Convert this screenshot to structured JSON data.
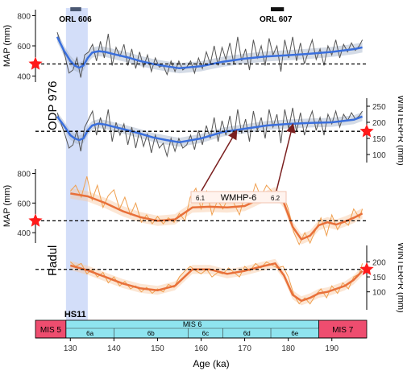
{
  "chart_data": {
    "type": "line",
    "x_axis": {
      "label": "Age (ka)",
      "range": [
        122,
        198
      ],
      "ticks": [
        130,
        140,
        150,
        160,
        170,
        180,
        190
      ]
    },
    "bands": [
      {
        "name": "HS11",
        "x_range": [
          129,
          134
        ],
        "color": "#c8d6f8"
      }
    ],
    "annotations": {
      "orl_606": {
        "label": "ORL 606",
        "x_range": [
          130,
          132.5
        ]
      },
      "orl_607": {
        "label": "ORL 607",
        "x_range": [
          176,
          179
        ]
      },
      "wmhp": {
        "label": "WMHP-6",
        "left": "6.1",
        "right": "6.2",
        "arrow_targets": [
          168,
          181
        ]
      }
    },
    "panels": [
      {
        "id": "odp_map",
        "site_label": "ODP 976",
        "ylabel": "MAP (mm)",
        "y_side": "left",
        "ylim": [
          360,
          840
        ],
        "yticks": [
          400,
          600,
          800
        ],
        "reference_y": 480,
        "star_side": "left",
        "raw_color": "#555555",
        "smooth_color": "#3a6fdd",
        "band_color": "#9fb0c8",
        "smooth": {
          "x": [
            127,
            128.5,
            130,
            131,
            132,
            133,
            134,
            135,
            136.5,
            138,
            140,
            143,
            146,
            149,
            152,
            155,
            160,
            165,
            170,
            175,
            180,
            185,
            190,
            195,
            197
          ],
          "y": [
            660,
            570,
            500,
            470,
            455,
            470,
            520,
            555,
            565,
            560,
            545,
            525,
            500,
            480,
            465,
            452,
            465,
            495,
            515,
            530,
            538,
            548,
            560,
            578,
            590
          ]
        },
        "raw": {
          "x": [
            127.0,
            127.9,
            128.8,
            129.7,
            130.6,
            131.5,
            132.4,
            133.3,
            134.2,
            135.1,
            136.0,
            136.9,
            137.8,
            138.7,
            139.6,
            140.5,
            141.4,
            142.3,
            143.2,
            144.1,
            145.0,
            145.9,
            146.8,
            147.7,
            148.6,
            149.5,
            150.4,
            151.3,
            152.2,
            153.1,
            154.0,
            154.9,
            155.8,
            156.7,
            157.6,
            158.5,
            159.4,
            160.3,
            161.2,
            162.1,
            163.0,
            163.9,
            164.8,
            165.7,
            166.6,
            167.5,
            168.4,
            169.3,
            170.2,
            171.1,
            172.0,
            172.9,
            173.8,
            174.7,
            175.6,
            176.5,
            177.4,
            178.3,
            179.2,
            180.1,
            181.0,
            181.9,
            182.8,
            183.7,
            184.6,
            185.5,
            186.4,
            187.3,
            188.2,
            189.1,
            190.0,
            190.9,
            191.8,
            192.7,
            193.6,
            194.5,
            195.4,
            196.3,
            197.0
          ],
          "y": [
            690,
            610,
            530,
            420,
            440,
            520,
            390,
            540,
            560,
            610,
            500,
            630,
            520,
            680,
            470,
            590,
            530,
            610,
            470,
            580,
            450,
            560,
            460,
            540,
            430,
            520,
            460,
            470,
            410,
            500,
            430,
            500,
            440,
            460,
            500,
            420,
            520,
            450,
            560,
            480,
            600,
            470,
            590,
            510,
            620,
            480,
            660,
            500,
            580,
            440,
            640,
            520,
            600,
            470,
            650,
            540,
            600,
            430,
            640,
            520,
            660,
            500,
            620,
            480,
            560,
            640,
            510,
            580,
            470,
            600,
            540,
            640,
            520,
            610,
            560,
            620,
            570,
            600,
            640
          ]
        }
      },
      {
        "id": "odp_winterpr",
        "ylabel": "WINTERPR (mm)",
        "y_side": "right",
        "ylim": [
          75,
          275
        ],
        "yticks": [
          100,
          150,
          200,
          250
        ],
        "reference_y": 172,
        "star_side": "right",
        "raw_color": "#555555",
        "smooth_color": "#3a6fdd",
        "band_color": "#9fb0c8",
        "smooth": {
          "x": [
            127,
            128.5,
            130,
            131,
            132,
            133,
            134,
            135,
            136.5,
            138,
            140,
            143,
            146,
            149,
            152,
            155,
            160,
            165,
            170,
            175,
            180,
            185,
            190,
            195,
            197
          ],
          "y": [
            218,
            190,
            160,
            150,
            145,
            150,
            175,
            190,
            196,
            193,
            186,
            176,
            165,
            153,
            145,
            138,
            150,
            170,
            180,
            190,
            195,
            198,
            200,
            208,
            218
          ]
        },
        "raw": {
          "x": [
            127.0,
            127.9,
            128.8,
            129.7,
            130.6,
            131.5,
            132.4,
            133.3,
            134.2,
            135.1,
            136.0,
            136.9,
            137.8,
            138.7,
            139.6,
            140.5,
            141.4,
            142.3,
            143.2,
            144.1,
            145.0,
            145.9,
            146.8,
            147.7,
            148.6,
            149.5,
            150.4,
            151.3,
            152.2,
            153.1,
            154.0,
            154.9,
            155.8,
            156.7,
            157.6,
            158.5,
            159.4,
            160.3,
            161.2,
            162.1,
            163.0,
            163.9,
            164.8,
            165.7,
            166.6,
            167.5,
            168.4,
            169.3,
            170.2,
            171.1,
            172.0,
            172.9,
            173.8,
            174.7,
            175.6,
            176.5,
            177.4,
            178.3,
            179.2,
            180.1,
            181.0,
            181.9,
            182.8,
            183.7,
            184.6,
            185.5,
            186.4,
            187.3,
            188.2,
            189.1,
            190.0,
            190.9,
            191.8,
            192.7,
            193.6,
            194.5,
            195.4,
            196.3,
            197.0
          ],
          "y": [
            230,
            195,
            160,
            120,
            130,
            175,
            110,
            185,
            210,
            235,
            160,
            215,
            170,
            240,
            140,
            200,
            160,
            195,
            130,
            185,
            120,
            175,
            125,
            165,
            105,
            160,
            120,
            135,
            95,
            150,
            110,
            150,
            120,
            130,
            160,
            115,
            175,
            130,
            190,
            150,
            215,
            140,
            205,
            160,
            220,
            150,
            240,
            165,
            210,
            140,
            235,
            175,
            215,
            150,
            240,
            185,
            225,
            135,
            240,
            180,
            245,
            170,
            230,
            160,
            200,
            235,
            175,
            215,
            160,
            225,
            195,
            235,
            185,
            225,
            205,
            230,
            210,
            220,
            235
          ]
        }
      },
      {
        "id": "padul_map",
        "site_label": "Padul",
        "ylabel": "MAP (mm)",
        "y_side": "left",
        "ylim": [
          330,
          830
        ],
        "yticks": [
          400,
          600,
          800
        ],
        "reference_y": 480,
        "star_side": "left",
        "raw_color": "#f0a050",
        "smooth_color": "#e8703a",
        "band_color": "#f8c8a0",
        "smooth": {
          "x": [
            130,
            134,
            138,
            142,
            146,
            150,
            154,
            158,
            162,
            166,
            170,
            174,
            177,
            179,
            181,
            183,
            185,
            187,
            189,
            191,
            193,
            195,
            197
          ],
          "y": [
            665,
            645,
            600,
            545,
            505,
            480,
            490,
            570,
            575,
            570,
            580,
            635,
            675,
            600,
            440,
            355,
            380,
            450,
            470,
            455,
            475,
            500,
            530
          ]
        },
        "raw": {
          "x": [
            130.0,
            131.2,
            132.5,
            133.8,
            135.0,
            136.2,
            137.5,
            138.7,
            140.0,
            141.3,
            142.5,
            143.8,
            145.0,
            146.3,
            147.5,
            148.8,
            150.0,
            151.3,
            152.5,
            153.8,
            155.0,
            156.3,
            157.5,
            158.8,
            160.0,
            161.3,
            162.5,
            163.8,
            165.0,
            166.3,
            167.5,
            168.8,
            170.0,
            171.2,
            172.5,
            173.7,
            175.0,
            176.2,
            177.5,
            178.8,
            180.0,
            181.3,
            182.5,
            183.8,
            185.0,
            186.3,
            187.5,
            188.8,
            190.0,
            191.3,
            192.5,
            193.8,
            195.0,
            196.3,
            197.0
          ],
          "y": [
            680,
            720,
            640,
            780,
            620,
            720,
            570,
            650,
            690,
            560,
            640,
            520,
            600,
            470,
            520,
            460,
            510,
            460,
            500,
            470,
            530,
            480,
            640,
            700,
            560,
            680,
            520,
            620,
            560,
            640,
            600,
            520,
            650,
            600,
            730,
            640,
            720,
            680,
            640,
            660,
            560,
            400,
            320,
            400,
            330,
            420,
            500,
            380,
            520,
            420,
            480,
            450,
            560,
            500,
            560
          ]
        }
      },
      {
        "id": "padul_winterpr",
        "ylabel": "WINTERPR (mm)",
        "y_side": "right",
        "ylim": [
          40,
          255
        ],
        "yticks": [
          100,
          150,
          200
        ],
        "reference_y": 175,
        "star_side": "right",
        "raw_color": "#f0a050",
        "smooth_color": "#e8703a",
        "band_color": "#f8c8a0",
        "smooth": {
          "x": [
            130,
            134,
            138,
            142,
            146,
            150,
            154,
            158,
            162,
            166,
            170,
            174,
            177,
            179,
            181,
            183,
            185,
            187,
            189,
            191,
            193,
            195,
            197
          ],
          "y": [
            188,
            172,
            150,
            128,
            112,
            105,
            120,
            175,
            175,
            160,
            170,
            185,
            195,
            155,
            90,
            70,
            80,
            95,
            100,
            110,
            120,
            140,
            170
          ]
        },
        "raw": {
          "x": [
            130.0,
            131.2,
            132.5,
            133.8,
            135.0,
            136.2,
            137.5,
            138.7,
            140.0,
            141.3,
            142.5,
            143.8,
            145.0,
            146.3,
            147.5,
            148.8,
            150.0,
            151.3,
            152.5,
            153.8,
            155.0,
            156.3,
            157.5,
            158.8,
            160.0,
            161.3,
            162.5,
            163.8,
            165.0,
            166.3,
            167.5,
            168.8,
            170.0,
            171.2,
            172.5,
            173.7,
            175.0,
            176.2,
            177.5,
            178.8,
            180.0,
            181.3,
            182.5,
            183.8,
            185.0,
            186.3,
            187.5,
            188.8,
            190.0,
            191.3,
            192.5,
            193.8,
            195.0,
            196.3,
            197.0
          ],
          "y": [
            200,
            185,
            195,
            160,
            175,
            150,
            165,
            130,
            150,
            120,
            135,
            110,
            120,
            100,
            115,
            95,
            110,
            100,
            125,
            115,
            150,
            170,
            185,
            170,
            160,
            175,
            150,
            165,
            160,
            180,
            165,
            150,
            185,
            170,
            195,
            180,
            200,
            190,
            180,
            185,
            150,
            90,
            60,
            80,
            60,
            90,
            110,
            80,
            120,
            95,
            130,
            110,
            150,
            160,
            195
          ]
        }
      }
    ],
    "timescale": {
      "stages": [
        {
          "label": "MIS 5",
          "x_range": [
            122,
            129
          ],
          "color": "#ee4d6f"
        },
        {
          "label": "MIS 6",
          "x_range": [
            129,
            187
          ],
          "color": "#8fe4ef"
        },
        {
          "label": "MIS 7",
          "x_range": [
            187,
            198
          ],
          "color": "#ee4d6f"
        }
      ],
      "substages": [
        {
          "label": "6a",
          "x_range": [
            129,
            140
          ]
        },
        {
          "label": "6b",
          "x_range": [
            140,
            157
          ]
        },
        {
          "label": "6c",
          "x_range": [
            157,
            165
          ]
        },
        {
          "label": "6d",
          "x_range": [
            165,
            176
          ]
        },
        {
          "label": "6e",
          "x_range": [
            176,
            187
          ]
        }
      ]
    }
  }
}
